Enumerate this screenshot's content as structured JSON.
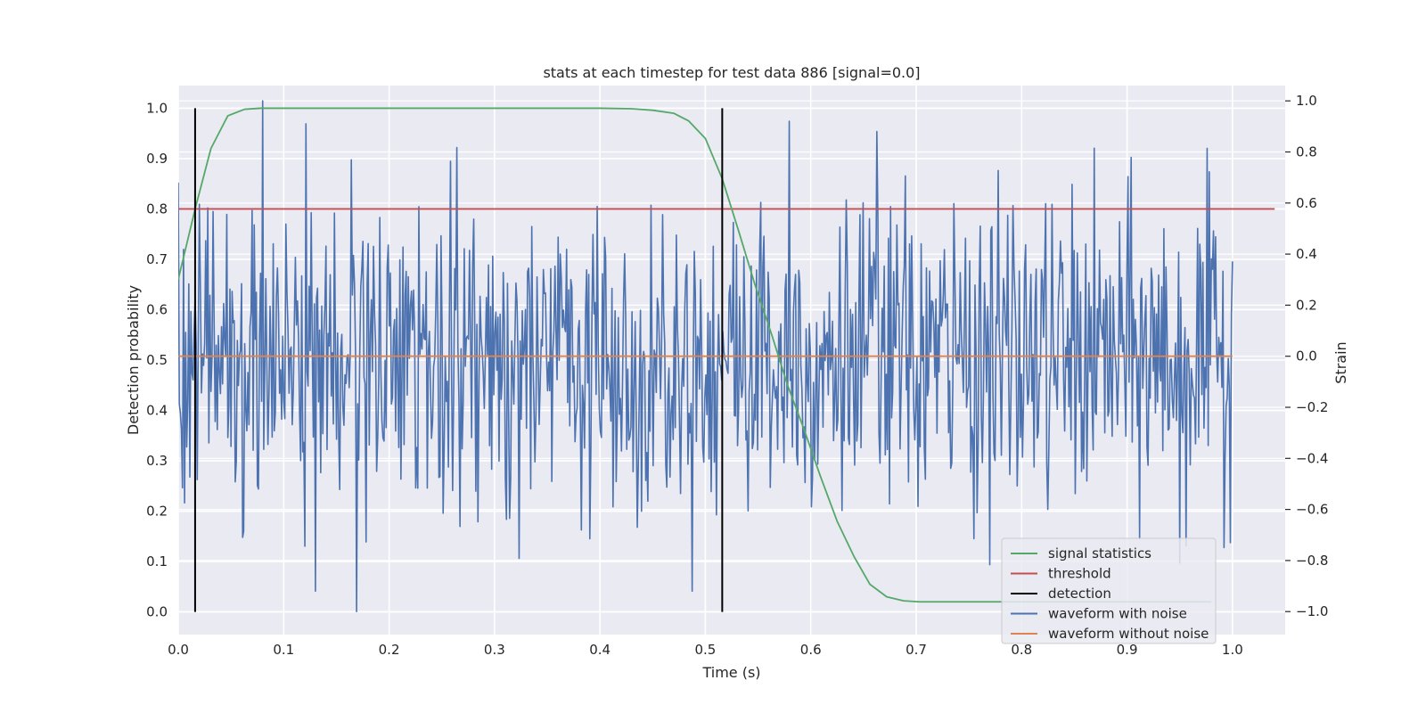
{
  "chart_data": {
    "type": "line",
    "title": "stats at each timestep for test data 886 [signal=0.0]",
    "xlabel": "Time (s)",
    "ylabel": "Detection probability",
    "y2label": "Strain",
    "xlim": [
      0.0,
      1.05
    ],
    "ylim": [
      -0.045,
      1.045
    ],
    "y2lim": [
      -1.09,
      1.06
    ],
    "x_ticks": [
      0.0,
      0.1,
      0.2,
      0.3,
      0.4,
      0.5,
      0.6,
      0.7,
      0.8,
      0.9,
      1.0
    ],
    "x_tick_labels": [
      "0.0",
      "0.1",
      "0.2",
      "0.3",
      "0.4",
      "0.5",
      "0.6",
      "0.7",
      "0.8",
      "0.9",
      "1.0"
    ],
    "y_ticks": [
      0.0,
      0.1,
      0.2,
      0.3,
      0.4,
      0.5,
      0.6,
      0.7,
      0.8,
      0.9,
      1.0
    ],
    "y_tick_labels": [
      "0.0",
      "0.1",
      "0.2",
      "0.3",
      "0.4",
      "0.5",
      "0.6",
      "0.7",
      "0.8",
      "0.9",
      "1.0"
    ],
    "y2_ticks": [
      -1.0,
      -0.8,
      -0.6,
      -0.4,
      -0.2,
      0.0,
      0.2,
      0.4,
      0.6,
      0.8,
      1.0
    ],
    "y2_tick_labels": [
      "−1.0",
      "−0.8",
      "−0.6",
      "−0.4",
      "−0.2",
      "0.0",
      "0.2",
      "0.4",
      "0.6",
      "0.8",
      "1.0"
    ],
    "grid": true,
    "legend_position": "lower-right",
    "colors": {
      "plot_background": "#eaeaf2",
      "grid": "#ffffff",
      "signal_statistics": "#55a868",
      "threshold": "#c44e52",
      "detection": "#000000",
      "waveform_with_noise": "#4c72b0",
      "waveform_without_noise": "#dd8452"
    },
    "series": [
      {
        "name": "signal statistics",
        "axis": "left",
        "x": [
          0.0,
          0.016,
          0.031,
          0.047,
          0.063,
          0.078,
          0.094,
          0.109,
          0.125,
          0.2,
          0.3,
          0.4,
          0.43,
          0.45,
          0.47,
          0.484,
          0.5,
          0.516,
          0.531,
          0.547,
          0.563,
          0.578,
          0.594,
          0.609,
          0.625,
          0.641,
          0.656,
          0.672,
          0.688,
          0.703,
          0.75,
          0.8,
          0.9,
          0.98
        ],
        "y": [
          0.66,
          0.8,
          0.92,
          0.985,
          0.998,
          1.0,
          1.0,
          1.0,
          1.0,
          1.0,
          1.0,
          1.0,
          0.999,
          0.996,
          0.99,
          0.975,
          0.94,
          0.86,
          0.76,
          0.65,
          0.55,
          0.45,
          0.36,
          0.27,
          0.18,
          0.11,
          0.055,
          0.03,
          0.022,
          0.02,
          0.02,
          0.02,
          0.02,
          0.02
        ]
      },
      {
        "name": "threshold",
        "axis": "left",
        "x": [
          0.0,
          1.04
        ],
        "y": [
          0.8,
          0.8
        ]
      },
      {
        "name": "detection",
        "axis": "left",
        "x": [
          0.016,
          0.516
        ],
        "y_range": [
          0.0,
          1.0
        ]
      },
      {
        "name": "waveform with noise",
        "axis": "right",
        "x_range": [
          0.0,
          1.0
        ],
        "n_points": 1000,
        "y_range_approx": [
          -1.0,
          1.0
        ],
        "y_peaks": [
          {
            "x": 0.08,
            "y": 1.0
          },
          {
            "x": 0.169,
            "y": -1.0
          },
          {
            "x": 0.121,
            "y": 0.91
          },
          {
            "x": 0.58,
            "y": 0.92
          },
          {
            "x": 0.663,
            "y": 0.88
          },
          {
            "x": 0.95,
            "y": -0.81
          },
          {
            "x": 0.998,
            "y": -0.73
          },
          {
            "x": 0.0,
            "y": 0.68
          }
        ]
      },
      {
        "name": "waveform without noise",
        "axis": "right",
        "x": [
          0.0,
          1.0
        ],
        "y": [
          0.0,
          0.0
        ]
      }
    ]
  }
}
